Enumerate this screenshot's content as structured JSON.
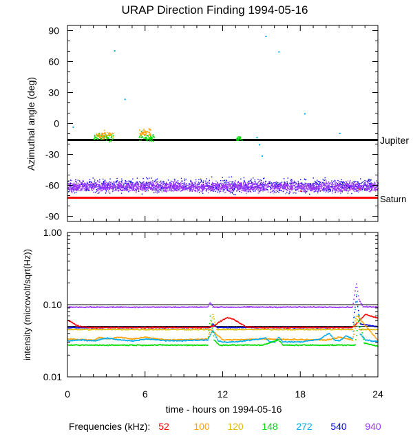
{
  "title": "URAP Direction Finding  1994-05-16",
  "chart_data": [
    {
      "type": "scatter",
      "name": "azimuth-panel",
      "ylabel": "Azimuthal angle (deg)",
      "ylim": [
        -95,
        95
      ],
      "xlim": [
        0,
        24
      ],
      "yticks": [
        {
          "v": 90,
          "label": "90"
        },
        {
          "v": 60,
          "label": "60"
        },
        {
          "v": 30,
          "label": "30"
        },
        {
          "v": 0,
          "label": "0"
        },
        {
          "v": -30,
          "label": "-30"
        },
        {
          "v": -60,
          "label": "-60"
        },
        {
          "v": -90,
          "label": "-90"
        }
      ],
      "reference_lines": [
        {
          "label": "Jupiter",
          "y": -16,
          "color": "#000000"
        },
        {
          "label": "Saturn",
          "y": -72,
          "color": "#ff0000"
        }
      ],
      "series": [
        {
          "name": "940",
          "color": "#9933ff",
          "band": {
            "x": [
              0,
              24
            ],
            "center": -61,
            "spread": 7
          }
        },
        {
          "name": "540",
          "color": "#0000dd",
          "band": {
            "x": [
              0,
              24
            ],
            "center": -60,
            "spread": 10
          }
        },
        {
          "name": "148",
          "color": "#00dd00",
          "clusters": [
            {
              "x": [
                2.0,
                3.5
              ],
              "center": -13,
              "spread": 6
            },
            {
              "x": [
                5.5,
                6.7
              ],
              "center": -13,
              "spread": 6
            },
            {
              "x": [
                13.0,
                13.5
              ],
              "center": -14,
              "spread": 4
            }
          ]
        },
        {
          "name": "100",
          "color": "#ffa000",
          "clusters": [
            {
              "x": [
                2.2,
                3.5
              ],
              "center": -11,
              "spread": 5
            },
            {
              "x": [
                5.5,
                6.4
              ],
              "center": -8,
              "spread": 5
            }
          ]
        },
        {
          "name": "272",
          "color": "#00aaee",
          "points": [
            [
              3.6,
              71
            ],
            [
              4.4,
              24
            ],
            [
              0.4,
              -3
            ],
            [
              15.3,
              85
            ],
            [
              16.3,
              70
            ],
            [
              18.3,
              10
            ],
            [
              14.8,
              -20
            ],
            [
              15.0,
              -31
            ],
            [
              21.0,
              -9
            ],
            [
              14.6,
              -13
            ]
          ]
        },
        {
          "name": "52",
          "color": "#ff0000",
          "points": [
            [
              18.0,
              -65
            ],
            [
              22.5,
              -63
            ]
          ]
        }
      ]
    },
    {
      "type": "line",
      "name": "intensity-panel",
      "ylabel": "intensity (microvolt/sqrt(Hz))",
      "yscale": "log",
      "ylim": [
        0.01,
        1.0
      ],
      "xlim": [
        0,
        24
      ],
      "yticks": [
        {
          "v": 1.0,
          "label": "1.00"
        },
        {
          "v": 0.1,
          "label": "0.10"
        },
        {
          "v": 0.01,
          "label": "0.01"
        }
      ],
      "xlabel": "time - hours on 1994-05-16",
      "xticks": [
        {
          "v": 0,
          "label": "0"
        },
        {
          "v": 6,
          "label": "6"
        },
        {
          "v": 12,
          "label": "12"
        },
        {
          "v": 18,
          "label": "18"
        },
        {
          "v": 24,
          "label": "24"
        }
      ],
      "series": [
        {
          "name": "940",
          "color": "#9933ff",
          "x": [
            0,
            10.8,
            11.0,
            11.2,
            11.5,
            22.0,
            22.3,
            22.5,
            22.8,
            24
          ],
          "y": [
            0.094,
            0.094,
            0.11,
            0.095,
            0.094,
            0.094,
            0.2,
            0.12,
            0.095,
            0.094
          ]
        },
        {
          "name": "540",
          "color": "#0000dd",
          "x": [
            0,
            11.0,
            11.2,
            11.5,
            22.0,
            22.3,
            22.6,
            24
          ],
          "y": [
            0.049,
            0.049,
            0.055,
            0.049,
            0.049,
            0.13,
            0.055,
            0.05
          ]
        },
        {
          "name": "52",
          "color": "#ff0000",
          "x": [
            0,
            0.3,
            0.6,
            1.0,
            2,
            6,
            10.8,
            11.3,
            11.8,
            12.3,
            12.8,
            13.3,
            13.8,
            14.5,
            16,
            20,
            22.0,
            22.5,
            23.0,
            23.5,
            24
          ],
          "y": [
            0.062,
            0.058,
            0.053,
            0.05,
            0.049,
            0.049,
            0.049,
            0.052,
            0.06,
            0.067,
            0.064,
            0.056,
            0.05,
            0.049,
            0.049,
            0.049,
            0.049,
            0.06,
            0.075,
            0.07,
            0.066
          ]
        },
        {
          "name": "120",
          "color": "#ddbb00",
          "x": [
            0,
            6,
            11.0,
            11.2,
            11.5,
            22.0,
            22.3,
            22.5,
            24
          ],
          "y": [
            0.046,
            0.046,
            0.046,
            0.075,
            0.046,
            0.046,
            0.07,
            0.046,
            0.046
          ]
        },
        {
          "name": "100",
          "color": "#ffa000",
          "x": [
            0,
            2,
            2.5,
            3,
            4,
            5,
            6,
            7,
            8,
            10.8,
            11,
            12,
            15,
            20,
            21,
            22,
            22.4,
            24
          ],
          "y": [
            0.034,
            0.033,
            0.036,
            0.034,
            0.036,
            0.034,
            0.036,
            0.034,
            0.033,
            0.034,
            0.046,
            0.033,
            0.034,
            0.033,
            0.036,
            0.033,
            0.07,
            0.032
          ]
        },
        {
          "name": "272",
          "color": "#00aaee",
          "x": [
            0,
            1,
            2,
            3,
            4,
            5,
            6,
            7,
            8,
            10.8,
            11.2,
            11.6,
            12,
            13,
            15.3,
            15.6,
            16,
            16.3,
            16.6,
            17,
            18,
            19.5,
            19.8,
            20.2,
            20.6,
            21,
            21.5,
            22,
            22.3,
            22.6,
            23,
            24
          ],
          "y": [
            0.032,
            0.033,
            0.032,
            0.035,
            0.033,
            0.032,
            0.034,
            0.033,
            0.032,
            0.033,
            0.045,
            0.032,
            0.031,
            0.031,
            0.035,
            0.031,
            0.031,
            0.036,
            0.031,
            0.031,
            0.031,
            0.034,
            0.037,
            0.041,
            0.033,
            0.032,
            0.038,
            0.034,
            0.14,
            0.04,
            0.033,
            0.031
          ]
        },
        {
          "name": "148",
          "color": "#00dd00",
          "x": [
            0,
            2,
            4,
            6,
            8,
            10.8,
            11.0,
            11.3,
            11.7,
            12,
            15,
            16.3,
            16.6,
            18,
            20,
            21,
            22.2,
            22.5,
            22.9,
            24
          ],
          "y": [
            0.028,
            0.028,
            0.028,
            0.028,
            0.028,
            0.028,
            0.07,
            0.033,
            0.028,
            0.028,
            0.028,
            0.033,
            0.028,
            0.028,
            0.028,
            0.028,
            0.028,
            0.07,
            0.03,
            0.027
          ]
        }
      ]
    }
  ],
  "legend": {
    "label": "Frequencies (kHz):",
    "items": [
      {
        "name": "52",
        "color": "#ff0000"
      },
      {
        "name": "100",
        "color": "#ffa000"
      },
      {
        "name": "120",
        "color": "#ddbb00"
      },
      {
        "name": "148",
        "color": "#00dd00"
      },
      {
        "name": "272",
        "color": "#00aaee"
      },
      {
        "name": "540",
        "color": "#0000dd"
      },
      {
        "name": "940",
        "color": "#9933ff"
      }
    ]
  }
}
